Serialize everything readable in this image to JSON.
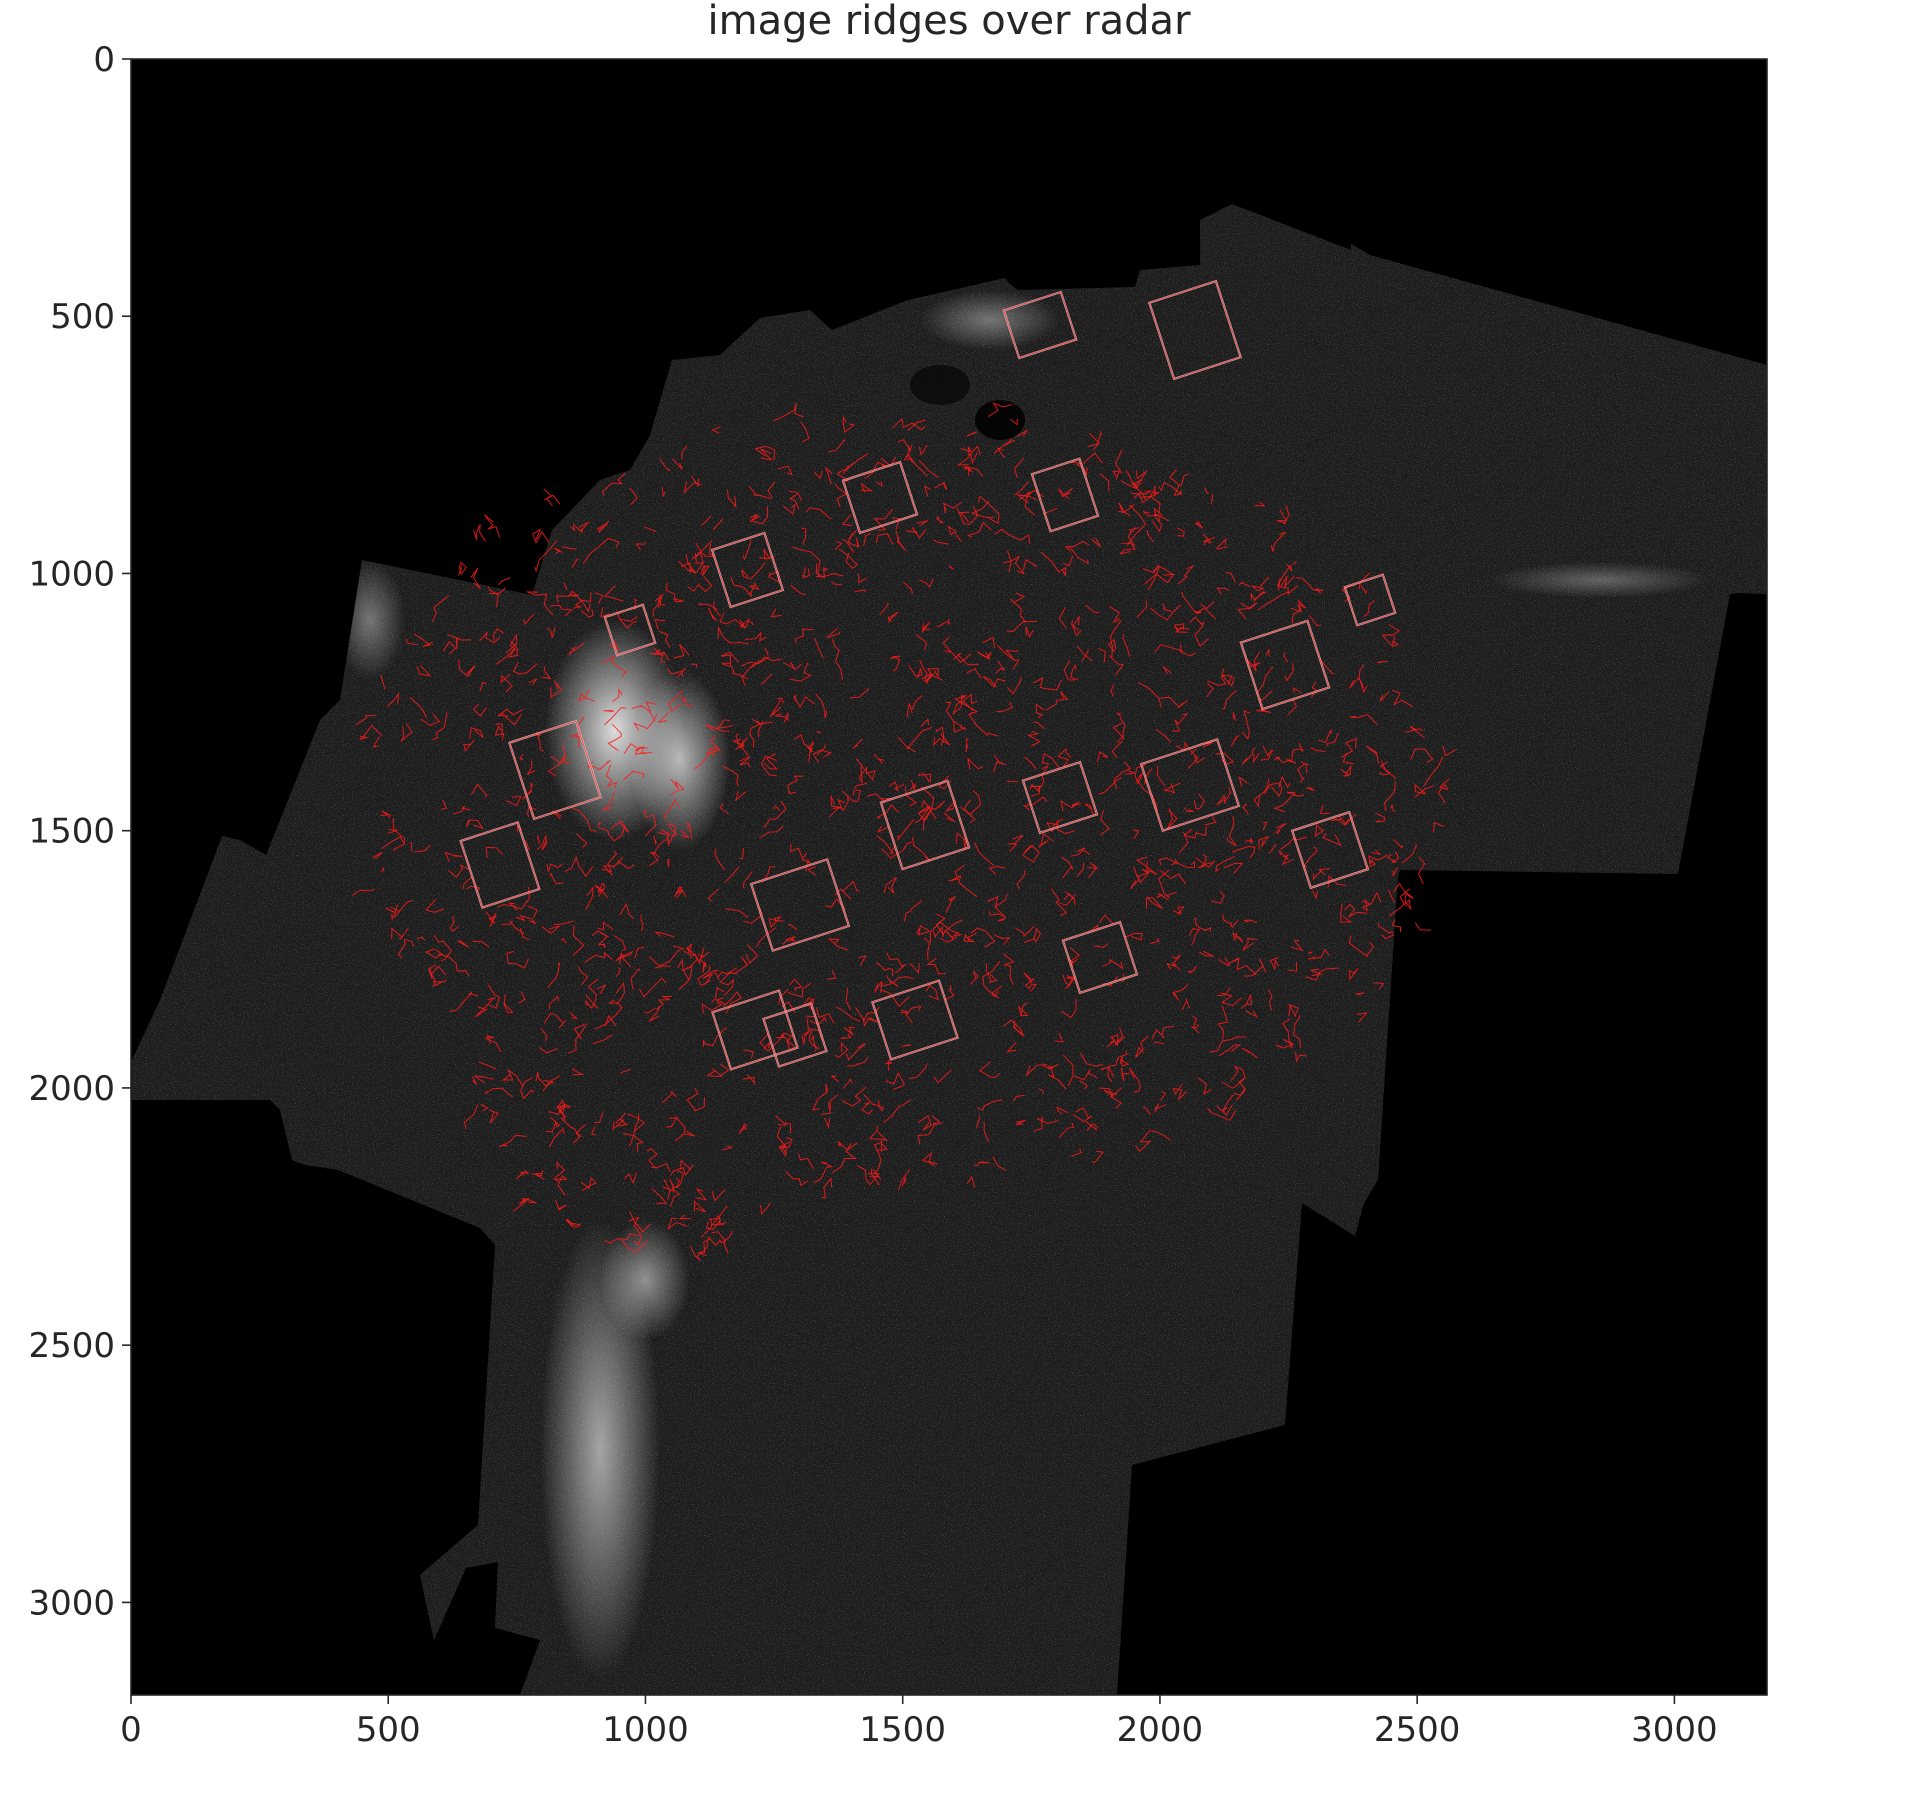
{
  "chart_data": {
    "type": "heatmap",
    "title": "image ridges over radar",
    "xlabel": "",
    "ylabel": "",
    "xlim": [
      0,
      3180
    ],
    "ylim": [
      3180,
      0
    ],
    "y_inverted": true,
    "x_ticks": [
      0,
      500,
      1000,
      1500,
      2000,
      2500,
      3000
    ],
    "y_ticks": [
      0,
      500,
      1000,
      1500,
      2000,
      2500,
      3000
    ],
    "x_tick_labels": [
      "0",
      "500",
      "1000",
      "1500",
      "2000",
      "2500",
      "3000"
    ],
    "y_tick_labels": [
      "0",
      "500",
      "1000",
      "1500",
      "2000",
      "2500",
      "3000"
    ],
    "grid": false,
    "layers": [
      {
        "kind": "image",
        "colormap": "grayscale",
        "content": "radar intensity"
      },
      {
        "kind": "overlay-lines",
        "color": "#ff1a1a",
        "content": "detected image ridges"
      }
    ],
    "colors": {
      "background": "#000000",
      "ridges": "#ff1a1a",
      "frame": "#262626"
    }
  }
}
